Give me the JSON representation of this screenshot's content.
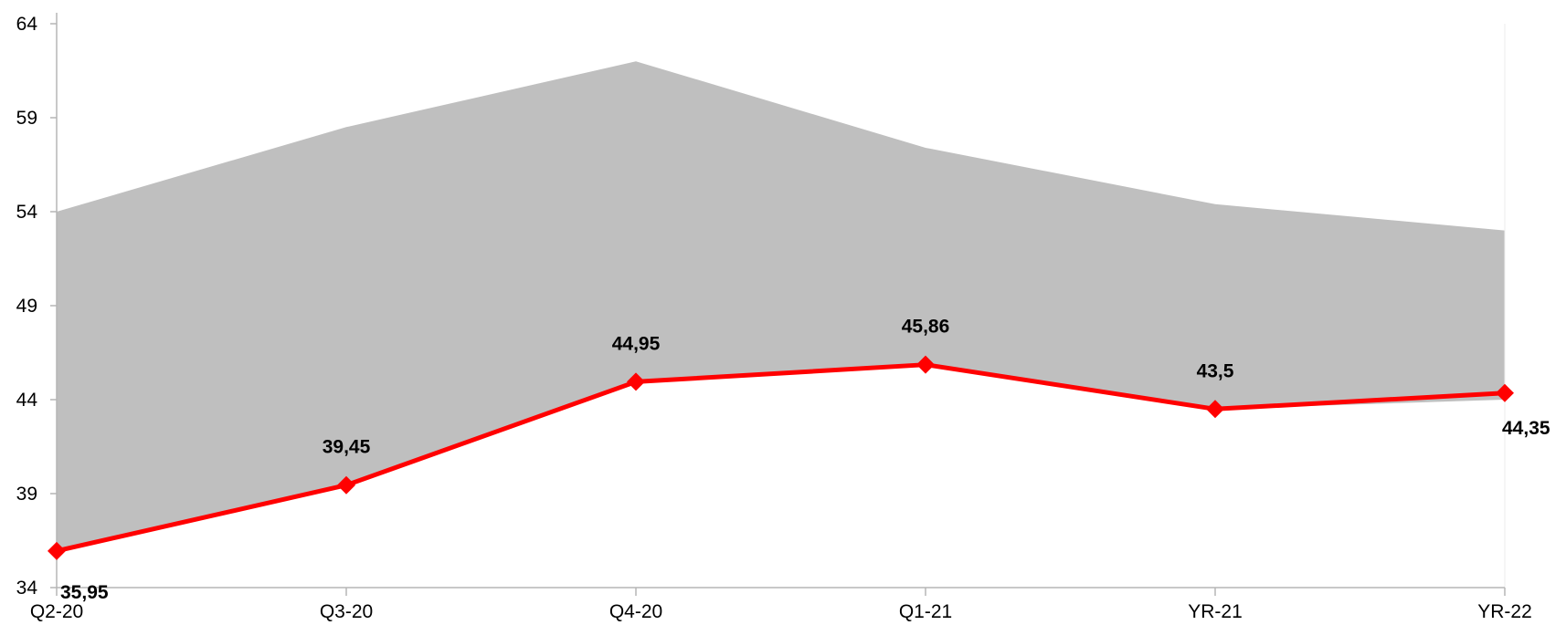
{
  "chart_data": {
    "type": "area",
    "title": "",
    "xlabel": "",
    "ylabel": "",
    "categories": [
      "Q2-20",
      "Q3-20",
      "Q4-20",
      "Q1-21",
      "YR-21",
      "YR-22"
    ],
    "ylim": [
      34,
      64
    ],
    "yticks": [
      34,
      39,
      44,
      49,
      54,
      59,
      64
    ],
    "grid": false,
    "legend": "none",
    "band": {
      "lower": [
        35.95,
        39.45,
        44.95,
        45.86,
        43.5,
        44.0
      ],
      "upper": [
        54.0,
        58.5,
        62.0,
        57.4,
        54.4,
        53.0
      ],
      "color": "#bfbfbf"
    },
    "series": [
      {
        "values": [
          35.95,
          39.45,
          44.95,
          45.86,
          43.5,
          44.35
        ],
        "labels": [
          "35,95",
          "39,45",
          "44,95",
          "45,86",
          "43,5",
          "44,35"
        ],
        "color": "#ff0000",
        "marker": "diamond"
      }
    ]
  }
}
